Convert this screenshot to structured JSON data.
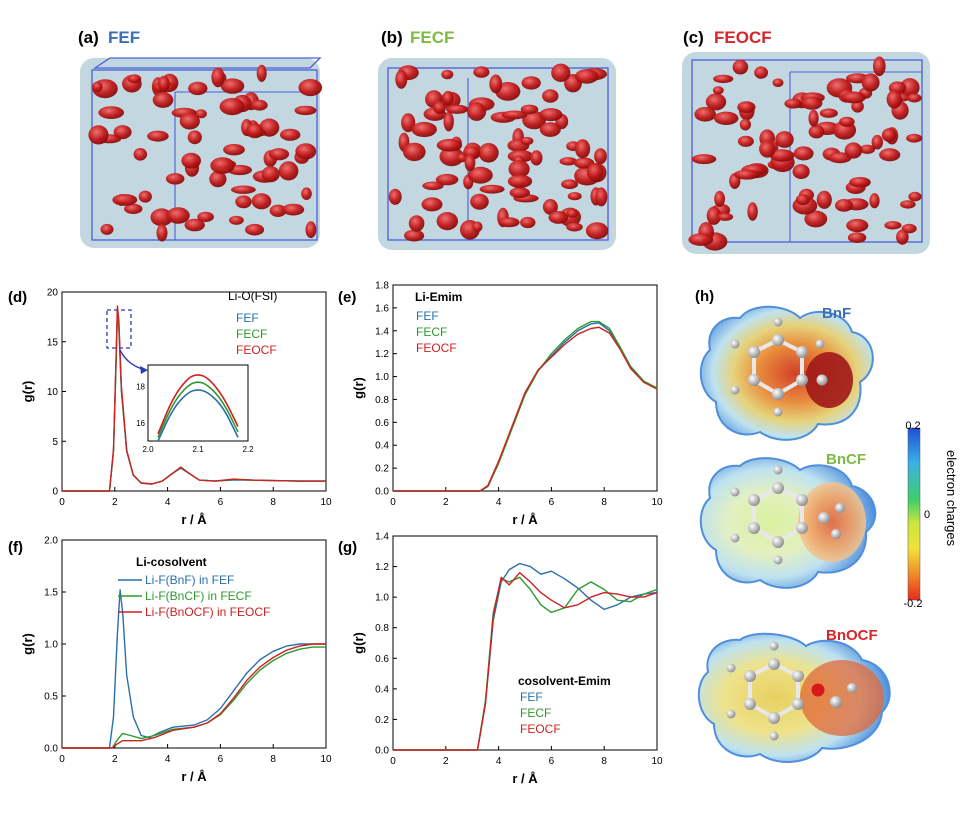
{
  "colors": {
    "blue": "#2a6fa8",
    "green": "#2e9a2e",
    "red": "#cc2222",
    "title_blue": "#3a6fb5",
    "title_green": "#7dbb43",
    "title_red": "#d6262b"
  },
  "panels_top": [
    {
      "label": "(a)",
      "name": "FEF"
    },
    {
      "label": "(b)",
      "name": "FECF"
    },
    {
      "label": "(c)",
      "name": "FEOCF"
    }
  ],
  "chart_data": [
    {
      "id": "d",
      "type": "line",
      "label": "(d)",
      "title": "Li-O(FSI)",
      "xlabel": "r / Å",
      "ylabel": "g(r)",
      "xlim": [
        0,
        10
      ],
      "ylim": [
        0,
        20
      ],
      "xticks": [
        "0",
        "2",
        "4",
        "6",
        "8",
        "10"
      ],
      "yticks": [
        "0",
        "5",
        "10",
        "15",
        "20"
      ],
      "legend": [
        "FEF",
        "FECF",
        "FEOCF"
      ],
      "series": [
        {
          "name": "FEF",
          "x": [
            0,
            1.8,
            1.95,
            2.05,
            2.1,
            2.15,
            2.25,
            2.45,
            2.7,
            3.0,
            3.4,
            3.8,
            4.2,
            4.5,
            4.8,
            5.2,
            5.8,
            6.5,
            7.2,
            8,
            9,
            10
          ],
          "y": [
            0,
            0,
            4,
            13,
            17.8,
            16.5,
            10,
            4,
            1.6,
            0.8,
            0.7,
            1.0,
            1.8,
            2.3,
            1.8,
            1.1,
            1.0,
            1.1,
            1.1,
            1.05,
            1.0,
            1.0
          ]
        },
        {
          "name": "FECF",
          "x": [
            0,
            1.8,
            1.95,
            2.05,
            2.1,
            2.15,
            2.25,
            2.45,
            2.7,
            3.0,
            3.4,
            3.8,
            4.2,
            4.5,
            4.8,
            5.2,
            5.8,
            6.5,
            7.2,
            8,
            9,
            10
          ],
          "y": [
            0,
            0,
            4,
            13,
            18.2,
            16.8,
            10.2,
            4,
            1.6,
            0.8,
            0.7,
            1.0,
            1.8,
            2.35,
            1.8,
            1.1,
            1.0,
            1.15,
            1.1,
            1.05,
            1.0,
            1.0
          ]
        },
        {
          "name": "FEOCF",
          "x": [
            0,
            1.8,
            1.95,
            2.05,
            2.1,
            2.15,
            2.25,
            2.45,
            2.7,
            3.0,
            3.4,
            3.8,
            4.2,
            4.5,
            4.8,
            5.2,
            5.8,
            6.5,
            7.2,
            8,
            9,
            10
          ],
          "y": [
            0,
            0,
            4.2,
            13.5,
            18.6,
            17.2,
            10.5,
            4.1,
            1.6,
            0.8,
            0.7,
            1.0,
            1.8,
            2.4,
            1.8,
            1.1,
            1.0,
            1.2,
            1.1,
            1.05,
            1.0,
            1.0
          ]
        }
      ],
      "inset": {
        "xlim": [
          2.0,
          2.2
        ],
        "ylim": [
          15,
          19.2
        ],
        "xticks": [
          "2.0",
          "2.1",
          "2.2"
        ],
        "yticks": [
          "16",
          "18"
        ],
        "series": [
          {
            "name": "FEF",
            "x": [
              2.02,
              2.05,
              2.08,
              2.1,
              2.12,
              2.15,
              2.18
            ],
            "y": [
              15.0,
              16.8,
              17.7,
              17.85,
              17.7,
              16.9,
              15.2
            ]
          },
          {
            "name": "FECF",
            "x": [
              2.02,
              2.05,
              2.08,
              2.1,
              2.12,
              2.15,
              2.18
            ],
            "y": [
              15.2,
              17.1,
              18.1,
              18.3,
              18.1,
              17.2,
              15.5
            ]
          },
          {
            "name": "FEOCF",
            "x": [
              2.02,
              2.05,
              2.08,
              2.1,
              2.12,
              2.15,
              2.18
            ],
            "y": [
              15.4,
              17.4,
              18.5,
              18.7,
              18.5,
              17.5,
              15.8
            ]
          }
        ]
      }
    },
    {
      "id": "e",
      "type": "line",
      "label": "(e)",
      "title": "Li-Emim",
      "xlabel": "r / Å",
      "ylabel": "g(r)",
      "xlim": [
        0,
        10
      ],
      "ylim": [
        0,
        1.8
      ],
      "xticks": [
        "0",
        "2",
        "4",
        "6",
        "8",
        "10"
      ],
      "yticks": [
        "0.0",
        "0.2",
        "0.4",
        "0.6",
        "0.8",
        "1.0",
        "1.2",
        "1.4",
        "1.6",
        "1.8"
      ],
      "legend": [
        "FEF",
        "FECF",
        "FEOCF"
      ],
      "series": [
        {
          "name": "FEF",
          "x": [
            0,
            3.3,
            3.6,
            4,
            4.5,
            5,
            5.5,
            6,
            6.5,
            7,
            7.5,
            7.8,
            8.2,
            8.6,
            9,
            9.5,
            10
          ],
          "y": [
            0,
            0,
            0.04,
            0.25,
            0.55,
            0.85,
            1.05,
            1.18,
            1.3,
            1.4,
            1.46,
            1.47,
            1.4,
            1.25,
            1.08,
            0.95,
            0.9
          ]
        },
        {
          "name": "FECF",
          "x": [
            0,
            3.3,
            3.6,
            4,
            4.5,
            5,
            5.5,
            6,
            6.5,
            7,
            7.5,
            7.8,
            8.2,
            8.6,
            9,
            9.5,
            10
          ],
          "y": [
            0,
            0,
            0.04,
            0.24,
            0.54,
            0.84,
            1.05,
            1.2,
            1.32,
            1.42,
            1.48,
            1.48,
            1.42,
            1.26,
            1.09,
            0.96,
            0.9
          ]
        },
        {
          "name": "FEOCF",
          "x": [
            0,
            3.3,
            3.6,
            4,
            4.5,
            5,
            5.5,
            6,
            6.5,
            7,
            7.5,
            7.8,
            8.2,
            8.6,
            9,
            9.5,
            10
          ],
          "y": [
            0,
            0,
            0.05,
            0.26,
            0.56,
            0.86,
            1.06,
            1.17,
            1.28,
            1.37,
            1.42,
            1.43,
            1.38,
            1.24,
            1.07,
            0.95,
            0.89
          ]
        }
      ]
    },
    {
      "id": "f",
      "type": "line",
      "label": "(f)",
      "title": "Li-cosolvent",
      "xlabel": "r / Å",
      "ylabel": "g(r)",
      "xlim": [
        0,
        10
      ],
      "ylim": [
        0,
        2.0
      ],
      "xticks": [
        "0",
        "2",
        "4",
        "6",
        "8",
        "10"
      ],
      "yticks": [
        "0.0",
        "0.5",
        "1.0",
        "1.5",
        "2.0"
      ],
      "legend": [
        "Li-F(BnF) in FEF",
        "Li-F(BnCF) in FECF",
        "Li-F(BnOCF) in FEOCF"
      ],
      "series": [
        {
          "name": "Li-F(BnF) in FEF",
          "x": [
            0,
            1.8,
            1.95,
            2.1,
            2.2,
            2.3,
            2.45,
            2.7,
            3.0,
            3.3,
            3.7,
            4.2,
            5,
            5.5,
            6,
            6.5,
            7,
            7.5,
            8,
            8.5,
            9,
            9.5,
            10
          ],
          "y": [
            0,
            0,
            0.3,
            1.1,
            1.52,
            1.3,
            0.7,
            0.3,
            0.12,
            0.1,
            0.15,
            0.2,
            0.22,
            0.27,
            0.38,
            0.55,
            0.72,
            0.85,
            0.93,
            0.98,
            1.0,
            1.0,
            1.0
          ]
        },
        {
          "name": "Li-F(BnCF) in FECF",
          "x": [
            0,
            1.9,
            2.1,
            2.3,
            2.6,
            3.0,
            3.5,
            4.2,
            5,
            5.5,
            6,
            6.5,
            7,
            7.5,
            8,
            8.5,
            9,
            9.5,
            10
          ],
          "y": [
            0,
            0,
            0.08,
            0.14,
            0.12,
            0.09,
            0.12,
            0.18,
            0.2,
            0.24,
            0.32,
            0.46,
            0.62,
            0.75,
            0.84,
            0.91,
            0.95,
            0.97,
            0.97
          ]
        },
        {
          "name": "Li-F(BnOCF) in FEOCF",
          "x": [
            0,
            1.9,
            2.1,
            2.3,
            2.6,
            3.0,
            3.5,
            4.2,
            5,
            5.5,
            6,
            6.5,
            7,
            7.5,
            8,
            8.5,
            9,
            9.5,
            10
          ],
          "y": [
            0,
            0,
            0.04,
            0.07,
            0.07,
            0.07,
            0.1,
            0.17,
            0.2,
            0.24,
            0.33,
            0.48,
            0.65,
            0.78,
            0.87,
            0.94,
            0.98,
            1.0,
            1.0
          ]
        }
      ]
    },
    {
      "id": "g",
      "type": "line",
      "label": "(g)",
      "title": "cosolvent-Emim",
      "xlabel": "r / Å",
      "ylabel": "g(r)",
      "xlim": [
        0,
        10
      ],
      "ylim": [
        0,
        1.4
      ],
      "xticks": [
        "0",
        "2",
        "4",
        "6",
        "8",
        "10"
      ],
      "yticks": [
        "0.0",
        "0.2",
        "0.4",
        "0.6",
        "0.8",
        "1.0",
        "1.2",
        "1.4"
      ],
      "legend": [
        "FEF",
        "FECF",
        "FEOCF"
      ],
      "series": [
        {
          "name": "FEF",
          "x": [
            0,
            3.2,
            3.5,
            3.8,
            4.1,
            4.4,
            4.8,
            5.2,
            5.6,
            6.0,
            6.5,
            7.0,
            7.5,
            8.0,
            8.5,
            9.0,
            9.5,
            10
          ],
          "y": [
            0,
            0,
            0.3,
            0.85,
            1.1,
            1.18,
            1.22,
            1.2,
            1.15,
            1.17,
            1.12,
            1.06,
            0.98,
            0.92,
            0.95,
            1.0,
            1.02,
            1.03
          ]
        },
        {
          "name": "FECF",
          "x": [
            0,
            3.2,
            3.5,
            3.8,
            4.1,
            4.4,
            4.8,
            5.2,
            5.6,
            6.0,
            6.5,
            7.0,
            7.5,
            8.0,
            8.5,
            9.0,
            9.5,
            10
          ],
          "y": [
            0,
            0,
            0.32,
            0.9,
            1.12,
            1.1,
            1.13,
            1.05,
            0.95,
            0.9,
            0.93,
            1.05,
            1.1,
            1.05,
            0.98,
            0.97,
            1.02,
            1.05
          ]
        },
        {
          "name": "FEOCF",
          "x": [
            0,
            3.2,
            3.5,
            3.8,
            4.1,
            4.4,
            4.8,
            5.2,
            5.6,
            6.0,
            6.5,
            7.0,
            7.5,
            8.0,
            8.5,
            9.0,
            9.5,
            10
          ],
          "y": [
            0,
            0,
            0.3,
            0.88,
            1.13,
            1.08,
            1.16,
            1.1,
            1.03,
            0.98,
            0.93,
            0.95,
            1.0,
            1.03,
            1.02,
            1.0,
            1.0,
            1.03
          ]
        }
      ]
    }
  ],
  "esp": {
    "label": "(h)",
    "molecules": [
      "BnF",
      "BnCF",
      "BnOCF"
    ],
    "colorbar": {
      "max_label": "0.2",
      "mid_label": "0",
      "min_label": "-0.2",
      "title": "electron charges"
    }
  }
}
